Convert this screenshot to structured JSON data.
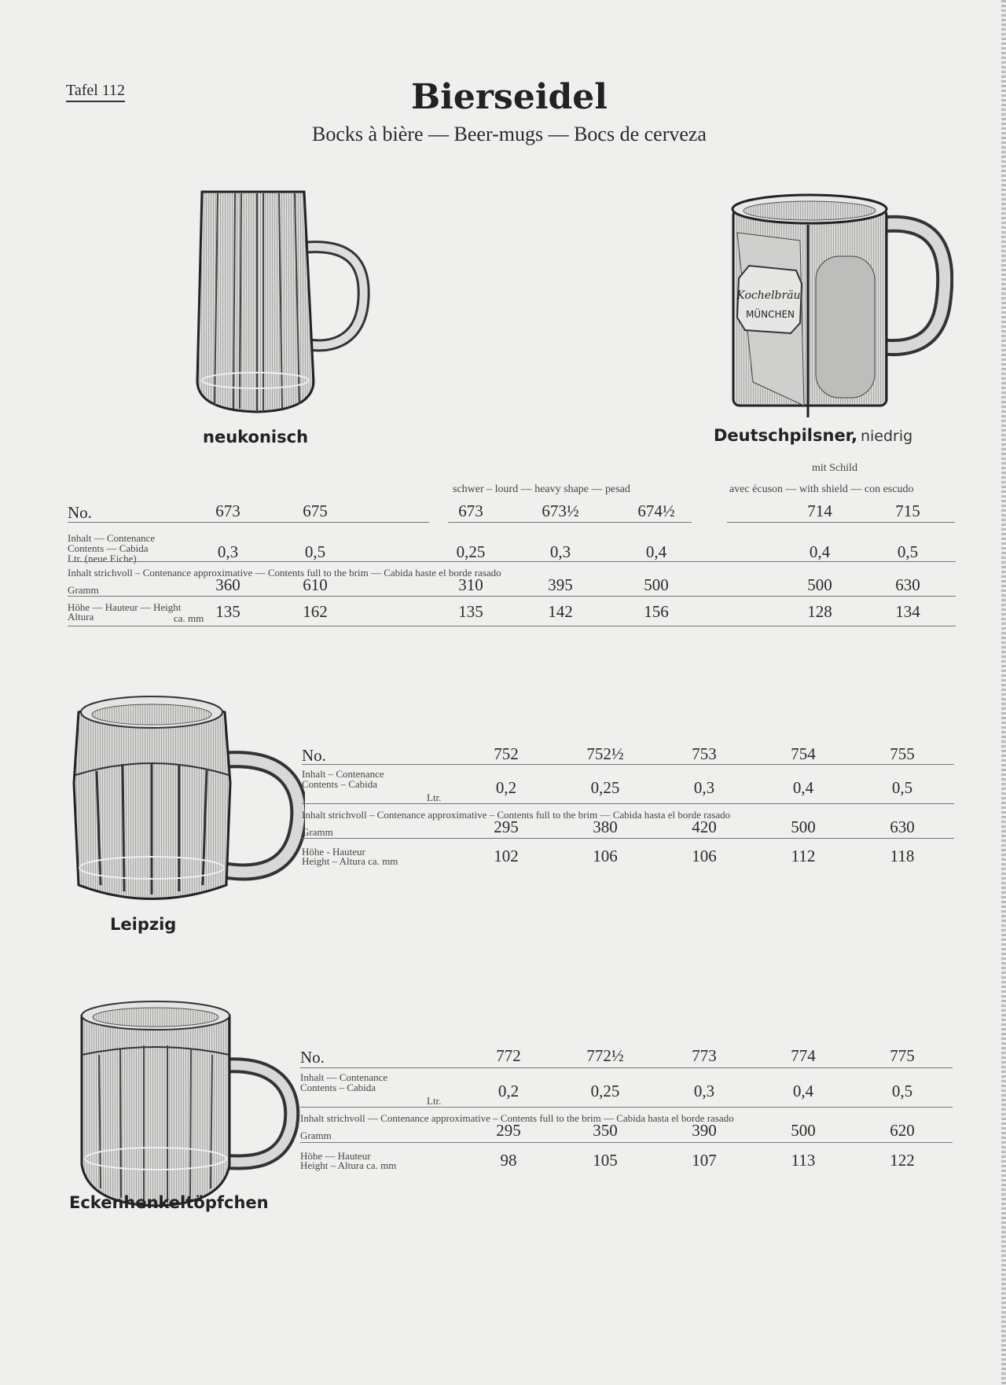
{
  "page": {
    "plate": "Tafel 112",
    "title": "Bierseidel",
    "subtitle": "Bocks à bière — Beer-mugs — Bocs de cerveza"
  },
  "products": {
    "neukonisch": {
      "label": "neukonisch"
    },
    "deutschpilsner": {
      "label": "Deutschpilsner,",
      "label_suffix": "niedrig",
      "shield_text": [
        "Kochelbräu",
        "MÜNCHEN"
      ]
    },
    "leipzig": {
      "label": "Leipzig"
    },
    "eckenhenkel": {
      "label": "Eckenhenkeltöpfchen"
    }
  },
  "table1": {
    "note_schild": "mit Schild",
    "note_heavy": "schwer  –  lourd  —  heavy shape  —  pesad",
    "note_shield": "avec écuson — with shield — con escudo",
    "row_labels": {
      "no": "No.",
      "contents": [
        "Inhalt — Contenance",
        "Contents — Cabida",
        "Ltr. (neue Eiche)"
      ],
      "strichvoll": "Inhalt strichvoll  – Contenance approximative  — Contents full to the brim  — Cabida haste el borde rasado",
      "gramm": "Gramm",
      "height": [
        "Höhe — Hauteur — Height",
        "Altura",
        "ca. mm"
      ]
    },
    "columns": [
      {
        "no": "673",
        "contents": "0,3",
        "gramm": "360",
        "height": "135"
      },
      {
        "no": "675",
        "contents": "0,5",
        "gramm": "610",
        "height": "162"
      },
      {
        "no": "673",
        "contents": "0,25",
        "gramm": "310",
        "height": "135"
      },
      {
        "no": "673½",
        "contents": "0,3",
        "gramm": "395",
        "height": "142"
      },
      {
        "no": "674½",
        "contents": "0,4",
        "gramm": "500",
        "height": "156"
      },
      {
        "no": "714",
        "contents": "0,4",
        "gramm": "500",
        "height": "128"
      },
      {
        "no": "715",
        "contents": "0,5",
        "gramm": "630",
        "height": "134"
      }
    ]
  },
  "table2": {
    "row_labels": {
      "no": "No.",
      "contents": [
        "Inhalt – Contenance",
        "Contents  –  Cabida",
        "Ltr."
      ],
      "strichvoll": "Inhalt strichvoll  –  Contenance approximative  –  Contents full to the brim — Cabida hasta el borde rasado",
      "gramm": "Gramm",
      "height": [
        "Höhe  -  Hauteur",
        "Height  –  Altura ca. mm"
      ]
    },
    "columns": [
      {
        "no": "752",
        "contents": "0,2",
        "gramm": "295",
        "height": "102"
      },
      {
        "no": "752½",
        "contents": "0,25",
        "gramm": "380",
        "height": "106"
      },
      {
        "no": "753",
        "contents": "0,3",
        "gramm": "420",
        "height": "106"
      },
      {
        "no": "754",
        "contents": "0,4",
        "gramm": "500",
        "height": "112"
      },
      {
        "no": "755",
        "contents": "0,5",
        "gramm": "630",
        "height": "118"
      }
    ]
  },
  "table3": {
    "row_labels": {
      "no": "No.",
      "contents": [
        "Inhalt — Contenance",
        "Contents  –  Cabida",
        "Ltr."
      ],
      "strichvoll": "Inhalt strichvoll — Contenance approximative  –  Contents full to the brim — Cabida hasta el borde rasado",
      "gramm": "Gramm",
      "height": [
        "Höhe — Hauteur",
        "Height  –  Altura ca. mm"
      ]
    },
    "columns": [
      {
        "no": "772",
        "contents": "0,2",
        "gramm": "295",
        "height": "98"
      },
      {
        "no": "772½",
        "contents": "0,25",
        "gramm": "350",
        "height": "105"
      },
      {
        "no": "773",
        "contents": "0,3",
        "gramm": "390",
        "height": "107"
      },
      {
        "no": "774",
        "contents": "0,4",
        "gramm": "500",
        "height": "113"
      },
      {
        "no": "775",
        "contents": "0,5",
        "gramm": "620",
        "height": "122"
      }
    ]
  }
}
